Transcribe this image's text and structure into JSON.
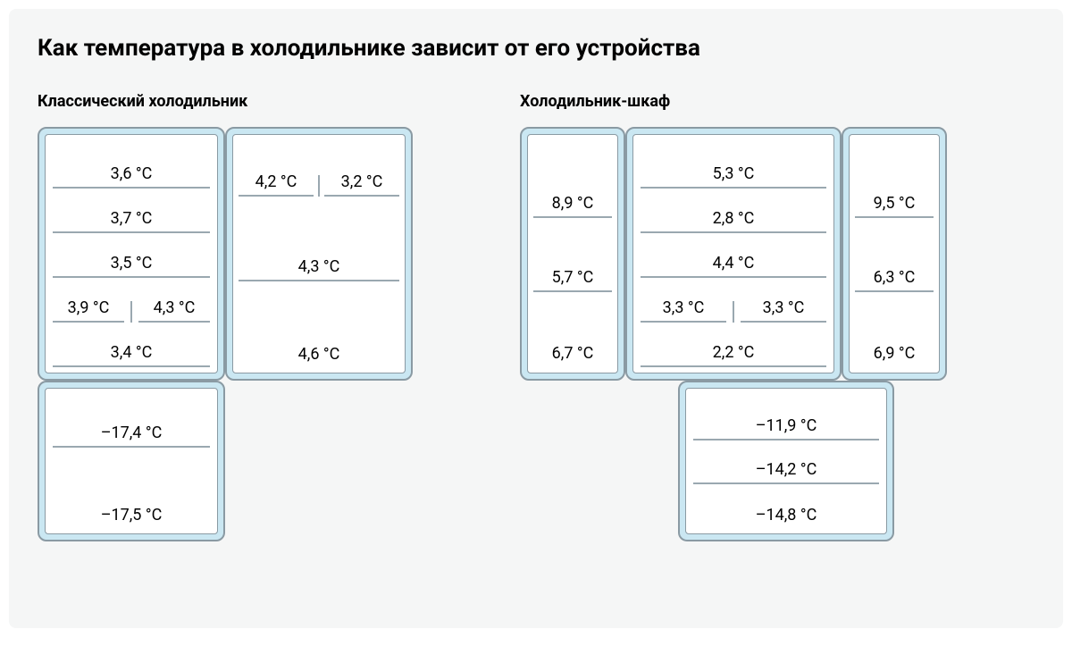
{
  "colors": {
    "background": "#f5f6f6",
    "text": "#000000",
    "panel_fill": "#cae7f2",
    "panel_stroke": "#8a9aa3",
    "shelf_stroke": "#9aa8b0"
  },
  "title": "Как температура в холодильнике зависит от его устройства",
  "classic": {
    "title": "Классический холодильник",
    "main_w": 210,
    "main_h": 284,
    "door_w": 210,
    "door_h": 284,
    "freezer_w": 210,
    "freezer_h": 180,
    "main_shelves": [
      {
        "cells": [
          "3,6 °C"
        ]
      },
      {
        "cells": [
          "3,7 °C"
        ]
      },
      {
        "cells": [
          "3,5 °C"
        ]
      },
      {
        "cells": [
          "3,9 °C",
          "4,3 °C"
        ]
      },
      {
        "cells": [
          "3,4 °C"
        ]
      }
    ],
    "door_shelves": [
      {
        "cells": [
          "4,2 °C",
          "3,2 °C"
        ]
      },
      {
        "cells": [
          "4,3 °C"
        ],
        "tall": true
      },
      {
        "cells": [
          "4,6 °C"
        ],
        "tall": true,
        "last": true
      }
    ],
    "freezer_shelves": [
      {
        "cells": [
          "–17,4 °C"
        ]
      },
      {
        "cells": [
          "–17,5 °C"
        ],
        "last": true,
        "tall": true
      }
    ]
  },
  "cabinet": {
    "title": "Холодильник-шкаф",
    "door_w": 118,
    "door_h": 284,
    "main_w": 242,
    "main_h": 284,
    "freezer_w": 242,
    "freezer_h": 180,
    "left_door": [
      {
        "cells": [
          "8,9 °C"
        ]
      },
      {
        "cells": [
          "5,7 °C"
        ]
      },
      {
        "cells": [
          "6,7 °C"
        ],
        "last": true
      }
    ],
    "main_shelves": [
      {
        "cells": [
          "5,3 °C"
        ]
      },
      {
        "cells": [
          "2,8 °C"
        ]
      },
      {
        "cells": [
          "4,4 °C"
        ]
      },
      {
        "cells": [
          "3,3 °C",
          "3,3 °C"
        ]
      },
      {
        "cells": [
          "2,2 °C"
        ]
      }
    ],
    "right_door": [
      {
        "cells": [
          "9,5 °C"
        ]
      },
      {
        "cells": [
          "6,3 °C"
        ]
      },
      {
        "cells": [
          "6,9 °C"
        ],
        "last": true
      }
    ],
    "freezer_shelves": [
      {
        "cells": [
          "–11,9 °C"
        ]
      },
      {
        "cells": [
          "–14,2 °C"
        ]
      },
      {
        "cells": [
          "–14,8 °C"
        ],
        "last": true
      }
    ]
  }
}
